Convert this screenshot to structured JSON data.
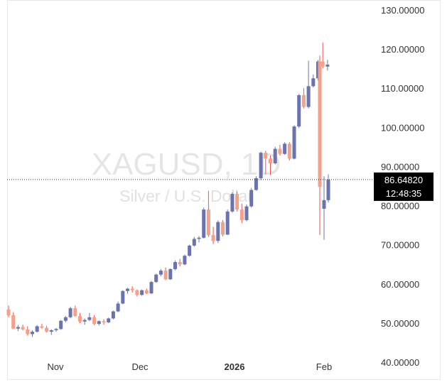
{
  "chart_data": {
    "type": "candlestick",
    "symbol": "XAGUSD, 1D",
    "subtitle": "Silver / U.S. Dollar",
    "y_ticks": [
      "130.00000",
      "120.00000",
      "110.00000",
      "100.00000",
      "90.00000",
      "80.00000",
      "70.00000",
      "60.00000",
      "50.00000",
      "40.00000"
    ],
    "ylim": [
      35.5,
      132.5
    ],
    "x_ticks": [
      {
        "label": "Nov",
        "index": 14,
        "bold": false
      },
      {
        "label": "Dec",
        "index": 40,
        "bold": false
      },
      {
        "label": "2026",
        "index": 67,
        "bold": true
      },
      {
        "label": "Feb",
        "index": 93,
        "bold": false
      }
    ],
    "last_price": "86.64820",
    "countdown": "12:48:35",
    "last_price_value": 86.6482,
    "colors": {
      "up": "#6a73ad",
      "down": "#f5a08a",
      "wick_down": "#ef5350",
      "price_tag": "#000000"
    },
    "candles": [
      [
        53.5,
        54.5,
        51.5,
        52.0
      ],
      [
        52.0,
        52.8,
        48.5,
        48.6
      ],
      [
        48.6,
        49.5,
        48.0,
        49.0
      ],
      [
        49.0,
        49.6,
        48.2,
        48.4
      ],
      [
        48.4,
        49.2,
        46.8,
        47.2
      ],
      [
        47.2,
        48.2,
        46.5,
        47.8
      ],
      [
        47.8,
        49.5,
        47.6,
        49.2
      ],
      [
        49.2,
        49.8,
        48.6,
        48.8
      ],
      [
        48.8,
        49.3,
        47.6,
        47.8
      ],
      [
        47.8,
        48.4,
        47.0,
        48.2
      ],
      [
        48.2,
        48.8,
        47.8,
        48.5
      ],
      [
        48.5,
        50.8,
        48.3,
        50.6
      ],
      [
        50.6,
        51.8,
        50.2,
        51.5
      ],
      [
        51.5,
        54.2,
        51.2,
        53.8
      ],
      [
        53.8,
        54.5,
        51.6,
        51.8
      ],
      [
        51.8,
        52.6,
        50.0,
        50.4
      ],
      [
        50.4,
        51.2,
        49.6,
        50.8
      ],
      [
        50.8,
        52.6,
        50.5,
        51.5
      ],
      [
        51.5,
        52.0,
        49.5,
        49.8
      ],
      [
        49.8,
        50.7,
        49.4,
        50.5
      ],
      [
        50.5,
        51.0,
        49.6,
        50.2
      ],
      [
        50.2,
        51.4,
        50.0,
        51.2
      ],
      [
        51.2,
        53.2,
        51.0,
        53.0
      ],
      [
        53.0,
        55.5,
        52.8,
        55.0
      ],
      [
        55.0,
        58.4,
        54.8,
        58.2
      ],
      [
        58.2,
        59.0,
        57.5,
        58.8
      ],
      [
        58.8,
        59.4,
        57.8,
        58.4
      ],
      [
        58.4,
        58.6,
        56.8,
        57.2
      ],
      [
        57.2,
        58.6,
        57.0,
        58.4
      ],
      [
        58.4,
        58.8,
        57.4,
        57.6
      ],
      [
        57.6,
        60.8,
        57.4,
        60.5
      ],
      [
        60.5,
        62.6,
        60.3,
        62.4
      ],
      [
        62.4,
        63.8,
        62.0,
        63.4
      ],
      [
        63.4,
        64.2,
        61.0,
        61.2
      ],
      [
        61.2,
        64.0,
        61.0,
        63.8
      ],
      [
        63.8,
        66.0,
        63.5,
        65.6
      ],
      [
        65.6,
        66.4,
        64.5,
        65.0
      ],
      [
        65.0,
        67.5,
        64.8,
        67.2
      ],
      [
        67.2,
        70.0,
        67.0,
        69.8
      ],
      [
        69.8,
        72.0,
        69.5,
        71.5
      ],
      [
        71.5,
        72.2,
        70.6,
        71.8
      ],
      [
        71.8,
        79.5,
        71.6,
        79.0
      ],
      [
        79.0,
        83.8,
        72.0,
        72.5
      ],
      [
        72.5,
        74.6,
        70.2,
        71.0
      ],
      [
        71.0,
        76.2,
        70.5,
        75.8
      ],
      [
        75.8,
        76.3,
        72.2,
        72.6
      ],
      [
        72.6,
        79.0,
        72.5,
        78.5
      ],
      [
        78.5,
        83.4,
        78.2,
        83.0
      ],
      [
        83.0,
        83.6,
        78.5,
        79.0
      ],
      [
        79.0,
        80.5,
        75.5,
        76.3
      ],
      [
        76.3,
        80.3,
        76.0,
        79.8
      ],
      [
        79.8,
        84.5,
        79.5,
        84.0
      ],
      [
        84.0,
        87.5,
        83.8,
        87.0
      ],
      [
        87.0,
        93.8,
        86.5,
        93.5
      ],
      [
        93.5,
        94.0,
        88.0,
        92.0
      ],
      [
        92.0,
        92.8,
        87.8,
        90.8
      ],
      [
        90.8,
        95.0,
        90.5,
        94.5
      ],
      [
        94.5,
        95.5,
        92.8,
        93.2
      ],
      [
        93.2,
        96.2,
        93.0,
        95.8
      ],
      [
        95.8,
        96.2,
        91.5,
        92.0
      ],
      [
        92.0,
        100.5,
        91.8,
        100.2
      ],
      [
        100.2,
        108.5,
        99.8,
        108.2
      ],
      [
        108.2,
        110.0,
        104.8,
        105.2
      ],
      [
        105.2,
        117.0,
        104.8,
        110.5
      ],
      [
        110.5,
        113.5,
        110.2,
        112.5
      ],
      [
        112.5,
        117.2,
        112.0,
        116.8
      ],
      [
        116.8,
        121.6,
        115.0,
        115.5
      ],
      [
        115.5,
        117.2,
        114.5,
        116.0
      ],
      [
        116.8,
        118.3,
        72.5,
        84.8
      ],
      [
        79.2,
        87.5,
        71.3,
        81.4
      ],
      [
        81.4,
        88.0,
        80.8,
        86.65
      ]
    ],
    "x_positions": [
      12,
      19,
      26,
      33,
      40,
      47,
      54,
      61,
      68,
      75,
      82,
      89,
      96,
      103,
      110,
      117,
      124,
      131,
      138,
      145,
      152,
      159,
      166,
      173,
      180,
      187,
      194,
      201,
      208,
      215,
      222,
      229,
      236,
      243,
      250,
      257,
      264,
      271,
      278,
      285,
      292,
      299,
      306,
      313,
      320,
      327,
      334,
      341,
      348,
      355,
      362,
      369,
      376,
      383,
      390,
      397,
      404,
      411,
      418,
      425,
      432,
      439,
      446,
      453,
      460,
      467,
      474,
      481,
      450,
      456,
      462
    ]
  }
}
